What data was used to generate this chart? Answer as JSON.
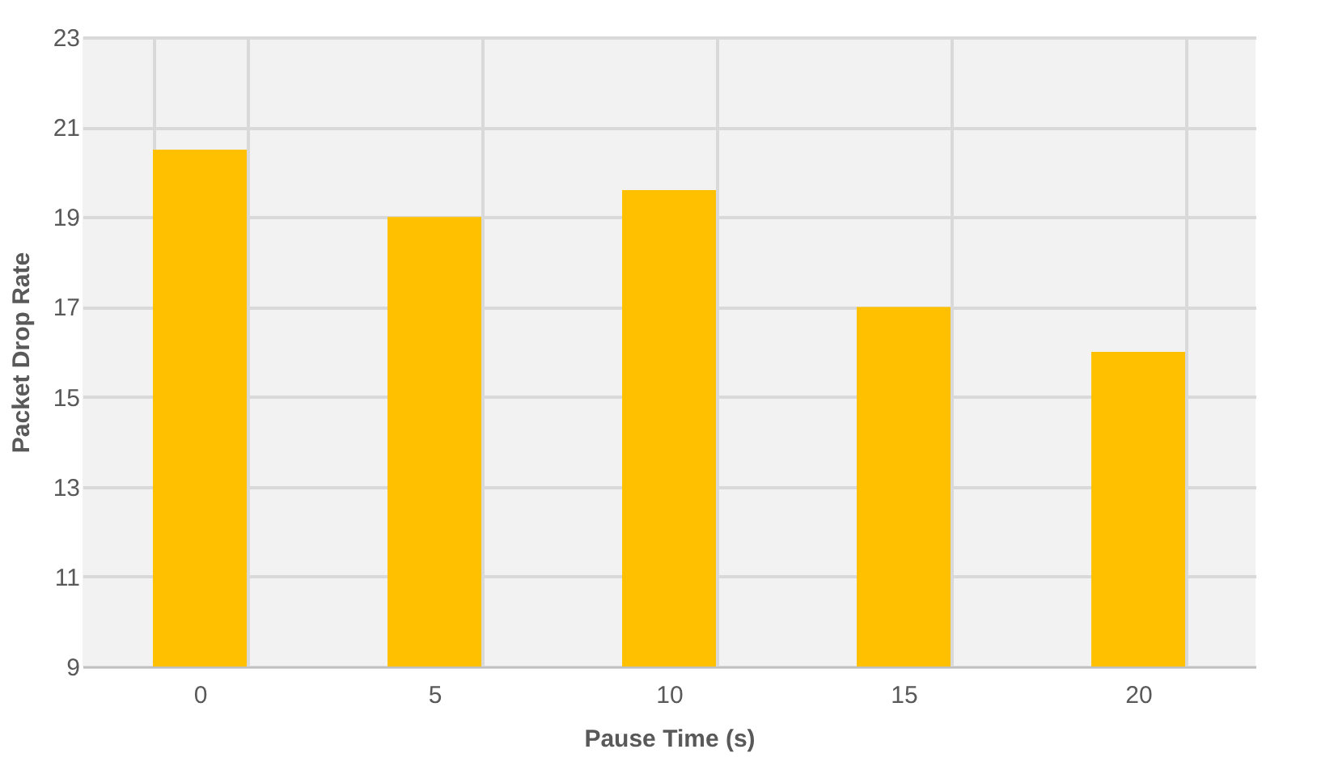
{
  "chart_data": {
    "type": "bar",
    "xlabel": "Pause Time (s)",
    "ylabel": "Packet Drop Rate",
    "categories": [
      "0",
      "5",
      "10",
      "15",
      "20"
    ],
    "values": [
      20.5,
      19.0,
      19.6,
      17.0,
      16.0
    ],
    "color": "#ffc000",
    "ylim": [
      9,
      23
    ],
    "yticks": [
      9,
      11,
      13,
      15,
      17,
      19,
      21,
      23
    ],
    "grid": true
  }
}
